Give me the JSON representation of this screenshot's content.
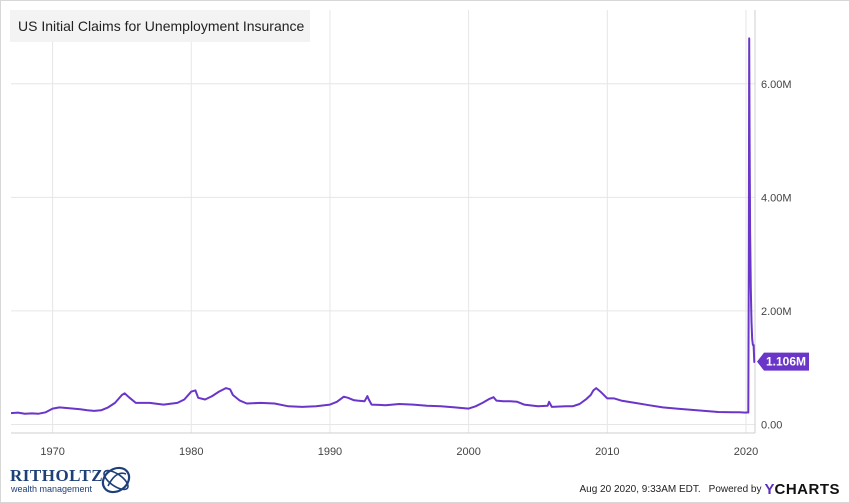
{
  "chart_data": {
    "type": "line",
    "title": "US Initial Claims for Unemployment Insurance",
    "xlabel": "",
    "ylabel": "",
    "xlim": [
      1967.0,
      2020.65
    ],
    "ylim": [
      -150000,
      7300000
    ],
    "x_ticks": [
      {
        "value": 1970,
        "label": "1970"
      },
      {
        "value": 1980,
        "label": "1980"
      },
      {
        "value": 1990,
        "label": "1990"
      },
      {
        "value": 2000,
        "label": "2000"
      },
      {
        "value": 2010,
        "label": "2010"
      },
      {
        "value": 2020,
        "label": "2020"
      }
    ],
    "y_ticks": [
      {
        "value": 0,
        "label": "0.00"
      },
      {
        "value": 2000000,
        "label": "2.00M"
      },
      {
        "value": 4000000,
        "label": "4.00M"
      },
      {
        "value": 6000000,
        "label": "6.00M"
      }
    ],
    "grid": true,
    "series": [
      {
        "color": "#6a35c9",
        "last_value_label": "1.106M",
        "x": [
          1967.0,
          1967.5,
          1968.0,
          1968.5,
          1969.0,
          1969.5,
          1970.0,
          1970.5,
          1971.0,
          1971.5,
          1972.0,
          1972.5,
          1973.0,
          1973.5,
          1974.0,
          1974.5,
          1975.0,
          1975.2,
          1975.5,
          1976.0,
          1976.5,
          1977.0,
          1978.0,
          1979.0,
          1979.5,
          1980.0,
          1980.3,
          1980.5,
          1981.0,
          1981.5,
          1982.0,
          1982.5,
          1982.8,
          1983.0,
          1983.5,
          1984.0,
          1985.0,
          1986.0,
          1987.0,
          1988.0,
          1989.0,
          1990.0,
          1990.5,
          1991.0,
          1991.3,
          1991.7,
          1992.0,
          1992.5,
          1992.7,
          1992.8,
          1993.0,
          1994.0,
          1995.0,
          1996.0,
          1997.0,
          1998.0,
          1999.0,
          2000.0,
          2000.5,
          2001.0,
          2001.5,
          2001.8,
          2002.0,
          2002.5,
          2003.0,
          2003.5,
          2004.0,
          2005.0,
          2005.7,
          2005.8,
          2006.0,
          2007.0,
          2007.5,
          2008.0,
          2008.5,
          2008.8,
          2009.0,
          2009.2,
          2009.5,
          2010.0,
          2010.5,
          2011.0,
          2012.0,
          2013.0,
          2014.0,
          2015.0,
          2016.0,
          2017.0,
          2018.0,
          2019.0,
          2019.5,
          2020.0,
          2020.1,
          2020.17,
          2020.2,
          2020.23,
          2020.26,
          2020.3,
          2020.35,
          2020.4,
          2020.45,
          2020.5,
          2020.55,
          2020.6,
          2020.63
        ],
        "values": [
          200000,
          210000,
          190000,
          195000,
          190000,
          215000,
          280000,
          300000,
          290000,
          280000,
          270000,
          250000,
          240000,
          250000,
          300000,
          380000,
          520000,
          550000,
          480000,
          380000,
          380000,
          380000,
          350000,
          380000,
          440000,
          580000,
          600000,
          470000,
          440000,
          500000,
          580000,
          640000,
          620000,
          520000,
          420000,
          370000,
          380000,
          370000,
          320000,
          310000,
          320000,
          350000,
          400000,
          490000,
          470000,
          430000,
          420000,
          410000,
          500000,
          440000,
          350000,
          340000,
          360000,
          350000,
          330000,
          320000,
          300000,
          280000,
          320000,
          380000,
          450000,
          480000,
          420000,
          410000,
          410000,
          400000,
          350000,
          320000,
          330000,
          400000,
          310000,
          320000,
          320000,
          360000,
          450000,
          520000,
          600000,
          640000,
          580000,
          460000,
          460000,
          420000,
          380000,
          340000,
          300000,
          280000,
          260000,
          240000,
          220000,
          215000,
          215000,
          210000,
          215000,
          210000,
          2900000,
          6800000,
          5000000,
          3400000,
          2400000,
          1800000,
          1500000,
          1400000,
          1400000,
          1100000,
          1106000
        ]
      }
    ]
  },
  "footer": {
    "timestamp": "Aug 20 2020, 9:33AM EDT.",
    "powered_by": "Powered by",
    "brand_y": "Y",
    "brand_rest": "CHARTS"
  },
  "logo": {
    "name": "RITHOLTZ",
    "subtitle": "wealth management"
  }
}
